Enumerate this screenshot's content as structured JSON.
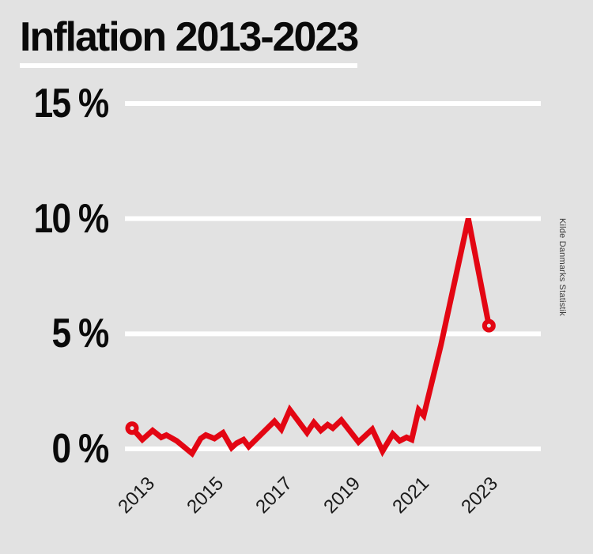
{
  "header": {
    "title": "Inflation 2013-2023"
  },
  "source_note": "Kilde Danmarks Statistik",
  "colors": {
    "background": "#e2e2e2",
    "line": "#e30613",
    "gridline": "#ffffff",
    "title_text": "#0a0a0a",
    "axis_text": "#1a1a1a",
    "source_text": "#3d3d3d"
  },
  "chart_data": {
    "type": "line",
    "title": "Inflation 2013-2023",
    "unit": "percent",
    "grid": "horizontal-only",
    "legend": {
      "visible": false
    },
    "x_axis": {
      "range": [
        2013,
        2023.5
      ],
      "ticks": [
        {
          "value": 2013,
          "label": "2013"
        },
        {
          "value": 2015,
          "label": "2015"
        },
        {
          "value": 2017,
          "label": "2017"
        },
        {
          "value": 2019,
          "label": "2019"
        },
        {
          "value": 2021,
          "label": "2021"
        },
        {
          "value": 2023,
          "label": "2023"
        }
      ]
    },
    "y_axis": {
      "range": [
        -0.5,
        15.5
      ],
      "ticks": [
        {
          "value": 15,
          "label": "15 %"
        },
        {
          "value": 10,
          "label": "10 %"
        },
        {
          "value": 5,
          "label": "5 %"
        },
        {
          "value": 0,
          "label": "0 %"
        }
      ]
    },
    "series": [
      {
        "name": "Inflation",
        "color": "#e30613",
        "marker_start": "open-circle",
        "marker_end": "open-circle",
        "points": [
          [
            2013.0,
            0.9
          ],
          [
            2013.3,
            0.4
          ],
          [
            2013.6,
            0.8
          ],
          [
            2013.85,
            0.5
          ],
          [
            2014.0,
            0.6
          ],
          [
            2014.3,
            0.35
          ],
          [
            2014.75,
            -0.2
          ],
          [
            2015.0,
            0.45
          ],
          [
            2015.15,
            0.6
          ],
          [
            2015.4,
            0.45
          ],
          [
            2015.65,
            0.7
          ],
          [
            2015.9,
            0.05
          ],
          [
            2016.05,
            0.25
          ],
          [
            2016.25,
            0.4
          ],
          [
            2016.4,
            0.1
          ],
          [
            2017.15,
            1.2
          ],
          [
            2017.35,
            0.85
          ],
          [
            2017.6,
            1.7
          ],
          [
            2018.1,
            0.7
          ],
          [
            2018.3,
            1.15
          ],
          [
            2018.5,
            0.8
          ],
          [
            2018.7,
            1.05
          ],
          [
            2018.85,
            0.9
          ],
          [
            2019.1,
            1.25
          ],
          [
            2019.6,
            0.3
          ],
          [
            2020.0,
            0.85
          ],
          [
            2020.3,
            -0.1
          ],
          [
            2020.6,
            0.65
          ],
          [
            2020.8,
            0.35
          ],
          [
            2021.0,
            0.5
          ],
          [
            2021.15,
            0.4
          ],
          [
            2021.35,
            1.7
          ],
          [
            2021.5,
            1.45
          ],
          [
            2022.0,
            4.5
          ],
          [
            2022.8,
            10.0
          ],
          [
            2023.4,
            5.35
          ]
        ]
      }
    ]
  }
}
